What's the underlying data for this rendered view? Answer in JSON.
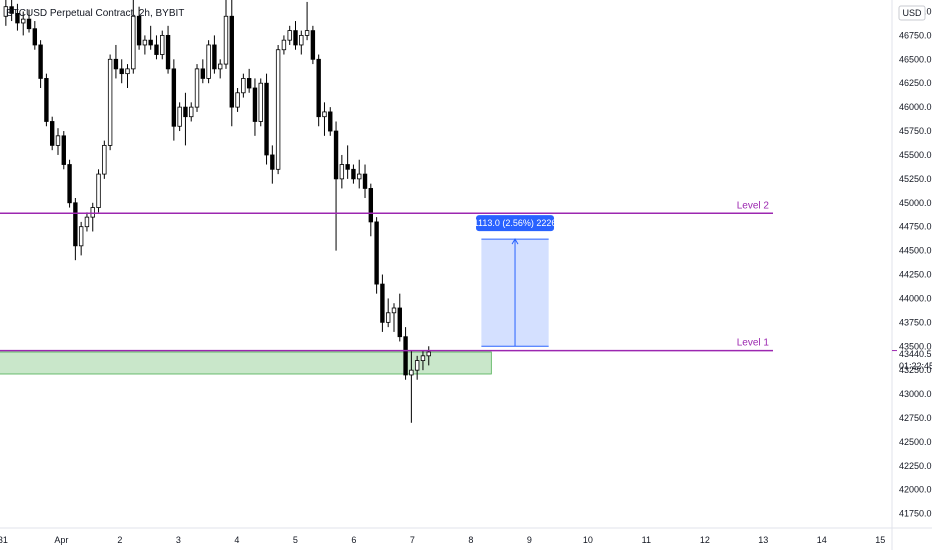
{
  "chart_data": {
    "type": "candlestick",
    "symbol_legend": "BTCUSD Perpetual Contract, 2h, BYBIT",
    "currency": "USD",
    "y_range": [
      41600,
      47120
    ],
    "y_ticks": [
      "47000.0",
      "46750.0",
      "46500.0",
      "46250.0",
      "46000.0",
      "45750.0",
      "45500.0",
      "45250.0",
      "45000.0",
      "44750.0",
      "44500.0",
      "44250.0",
      "44000.0",
      "43750.0",
      "43500.0",
      "43250.0",
      "43000.0",
      "42750.0",
      "42500.0",
      "42250.0",
      "42000.0",
      "41750.0"
    ],
    "y_tick_values": [
      47000,
      46750,
      46500,
      46250,
      46000,
      45750,
      45500,
      45250,
      45000,
      44750,
      44500,
      44250,
      44000,
      43750,
      43500,
      43250,
      43000,
      42750,
      42500,
      42250,
      42000,
      41750
    ],
    "x_ticks": [
      {
        "label": "31",
        "day": 0
      },
      {
        "label": "Apr",
        "day": 1
      },
      {
        "label": "2",
        "day": 2
      },
      {
        "label": "3",
        "day": 3
      },
      {
        "label": "4",
        "day": 4
      },
      {
        "label": "5",
        "day": 5
      },
      {
        "label": "6",
        "day": 6
      },
      {
        "label": "7",
        "day": 7
      },
      {
        "label": "8",
        "day": 8
      },
      {
        "label": "9",
        "day": 9
      },
      {
        "label": "10",
        "day": 10
      },
      {
        "label": "11",
        "day": 11
      },
      {
        "label": "12",
        "day": 12
      },
      {
        "label": "13",
        "day": 13
      },
      {
        "label": "14",
        "day": 14
      },
      {
        "label": "15",
        "day": 15
      }
    ],
    "candles": [
      [
        46950,
        47150,
        46850,
        47050
      ],
      [
        47050,
        47180,
        46900,
        46980
      ],
      [
        46980,
        47080,
        46800,
        46880
      ],
      [
        46880,
        47000,
        46750,
        46920
      ],
      [
        46920,
        47020,
        46780,
        46820
      ],
      [
        46820,
        46900,
        46600,
        46650
      ],
      [
        46650,
        46700,
        46200,
        46300
      ],
      [
        46300,
        46350,
        45800,
        45850
      ],
      [
        45850,
        45900,
        45550,
        45600
      ],
      [
        45600,
        45780,
        45500,
        45700
      ],
      [
        45700,
        45750,
        45350,
        45400
      ],
      [
        45400,
        45450,
        44950,
        45000
      ],
      [
        45000,
        45050,
        44400,
        44550
      ],
      [
        44550,
        44800,
        44450,
        44750
      ],
      [
        44750,
        44900,
        44700,
        44850
      ],
      [
        44850,
        45000,
        44700,
        44950
      ],
      [
        44950,
        45350,
        44900,
        45300
      ],
      [
        45300,
        45650,
        45250,
        45600
      ],
      [
        45600,
        46550,
        45550,
        46500
      ],
      [
        46500,
        46650,
        46300,
        46400
      ],
      [
        46400,
        46500,
        46250,
        46350
      ],
      [
        46350,
        46450,
        46200,
        46400
      ],
      [
        46400,
        47200,
        46350,
        46950
      ],
      [
        46950,
        47050,
        46600,
        46650
      ],
      [
        46650,
        46750,
        46550,
        46700
      ],
      [
        46700,
        46850,
        46600,
        46650
      ],
      [
        46650,
        46750,
        46500,
        46550
      ],
      [
        46550,
        46800,
        46500,
        46750
      ],
      [
        46750,
        46850,
        46350,
        46400
      ],
      [
        46400,
        46500,
        45650,
        45800
      ],
      [
        45800,
        46050,
        45750,
        46000
      ],
      [
        46000,
        46150,
        45600,
        45900
      ],
      [
        45900,
        46050,
        45850,
        46000
      ],
      [
        46000,
        46450,
        45950,
        46400
      ],
      [
        46400,
        46500,
        46250,
        46300
      ],
      [
        46300,
        46700,
        46250,
        46650
      ],
      [
        46650,
        46750,
        46350,
        46400
      ],
      [
        46400,
        46500,
        46300,
        46450
      ],
      [
        46450,
        47150,
        46400,
        46950
      ],
      [
        46950,
        47150,
        45800,
        46000
      ],
      [
        46000,
        46200,
        45950,
        46150
      ],
      [
        46150,
        46350,
        46100,
        46300
      ],
      [
        46300,
        46400,
        46150,
        46200
      ],
      [
        46200,
        46300,
        45700,
        45850
      ],
      [
        45850,
        46300,
        45800,
        46250
      ],
      [
        46250,
        46350,
        45400,
        45500
      ],
      [
        45500,
        45600,
        45200,
        45350
      ],
      [
        45350,
        46650,
        45300,
        46600
      ],
      [
        46600,
        46750,
        46550,
        46700
      ],
      [
        46700,
        46850,
        46650,
        46800
      ],
      [
        46800,
        46900,
        46600,
        46650
      ],
      [
        46650,
        46800,
        46550,
        46750
      ],
      [
        46750,
        47100,
        46700,
        46800
      ],
      [
        46800,
        46850,
        46450,
        46500
      ],
      [
        46500,
        46550,
        45800,
        45900
      ],
      [
        45900,
        46050,
        45700,
        45950
      ],
      [
        45950,
        46000,
        45700,
        45750
      ],
      [
        45750,
        45850,
        44500,
        45250
      ],
      [
        45250,
        45500,
        45150,
        45400
      ],
      [
        45400,
        45600,
        45250,
        45350
      ],
      [
        45350,
        45400,
        45200,
        45250
      ],
      [
        45250,
        45450,
        45150,
        45300
      ],
      [
        45300,
        45400,
        45050,
        45150
      ],
      [
        45150,
        45200,
        44650,
        44800
      ],
      [
        44800,
        44850,
        44050,
        44150
      ],
      [
        44150,
        44250,
        43650,
        43750
      ],
      [
        43750,
        44000,
        43700,
        43850
      ],
      [
        43850,
        43950,
        43650,
        43900
      ],
      [
        43900,
        44050,
        43550,
        43600
      ],
      [
        43600,
        43700,
        43150,
        43200
      ],
      [
        43200,
        43450,
        42700,
        43250
      ],
      [
        43250,
        43400,
        43150,
        43350
      ],
      [
        43350,
        43450,
        43250,
        43400
      ],
      [
        43400,
        43500,
        43300,
        43440
      ]
    ],
    "levels": [
      {
        "name": "Level 2",
        "price": 44890,
        "color": "#9c27b0"
      },
      {
        "name": "Level 1",
        "price": 43455,
        "color": "#9c27b0"
      }
    ],
    "support_zone": {
      "from_price": 43440,
      "to_price": 43210,
      "from_day": -0.1,
      "to_day": 8.35,
      "color": "#4caf50"
    },
    "measure_box": {
      "from_day": 8.18,
      "to_day": 9.33,
      "low": 43500,
      "high": 44620,
      "label": "1113.0 (2.56%) 2226"
    },
    "current_price": {
      "price": "43440.5",
      "countdown": "01:22:45"
    },
    "x_day_range": [
      -0.05,
      15.2
    ]
  }
}
